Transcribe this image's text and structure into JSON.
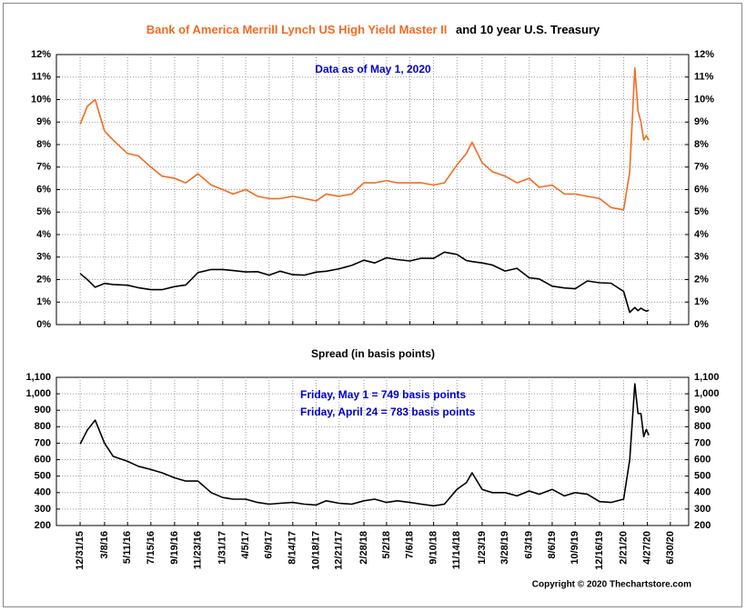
{
  "chart_data": [
    {
      "type": "line",
      "title_parts": [
        {
          "text": "Bank of America Merrill Lynch US High Yield Master II",
          "color": "#f26b21"
        },
        {
          "text": "and 10 year U.S. Treasury",
          "color": "#000000"
        }
      ],
      "annotation": "Data as of May 1, 2020",
      "x": [
        "12/31/15",
        "1/20/16",
        "2/11/16",
        "3/8/16",
        "4/1/16",
        "5/11/16",
        "6/10/16",
        "7/15/16",
        "8/15/16",
        "9/19/16",
        "10/20/16",
        "11/23/16",
        "12/30/16",
        "1/31/17",
        "3/1/17",
        "4/5/17",
        "5/8/17",
        "6/9/17",
        "7/10/17",
        "8/14/17",
        "9/15/17",
        "10/18/17",
        "11/15/17",
        "12/21/17",
        "1/25/18",
        "2/28/18",
        "3/30/18",
        "5/2/18",
        "6/1/18",
        "7/6/18",
        "8/7/18",
        "9/10/18",
        "10/10/18",
        "11/14/18",
        "12/10/18",
        "12/26/18",
        "1/23/19",
        "2/20/19",
        "3/28/19",
        "4/30/19",
        "6/3/19",
        "7/1/19",
        "8/6/19",
        "9/9/19",
        "10/9/19",
        "11/12/19",
        "12/16/19",
        "1/17/20",
        "2/21/20",
        "3/9/20",
        "3/23/20",
        "4/1/20",
        "4/9/20",
        "4/17/20",
        "4/24/20",
        "5/1/20"
      ],
      "xlim": [
        "10/26/15",
        "8/20/20"
      ],
      "ylim": [
        0,
        12
      ],
      "yticks": [
        {
          "value": 0,
          "label": "0%"
        },
        {
          "value": 1,
          "label": "1%"
        },
        {
          "value": 2,
          "label": "2%"
        },
        {
          "value": 3,
          "label": "3%"
        },
        {
          "value": 4,
          "label": "4%"
        },
        {
          "value": 5,
          "label": "5%"
        },
        {
          "value": 6,
          "label": "6%"
        },
        {
          "value": 7,
          "label": "7%"
        },
        {
          "value": 8,
          "label": "8%"
        },
        {
          "value": 9,
          "label": "9%"
        },
        {
          "value": 10,
          "label": "10%"
        },
        {
          "value": 11,
          "label": "11%"
        },
        {
          "value": 12,
          "label": "12%"
        }
      ],
      "grid": true,
      "annotation_color": "#0000cc",
      "series": [
        {
          "color": "#f26b21",
          "values": [
            8.9,
            9.7,
            10.0,
            8.6,
            8.2,
            7.6,
            7.5,
            7.0,
            6.6,
            6.5,
            6.3,
            6.7,
            6.2,
            6.0,
            5.8,
            6.0,
            5.7,
            5.6,
            5.6,
            5.7,
            5.6,
            5.5,
            5.8,
            5.7,
            5.8,
            6.3,
            6.3,
            6.4,
            6.3,
            6.3,
            6.3,
            6.2,
            6.3,
            7.1,
            7.6,
            8.1,
            7.2,
            6.8,
            6.6,
            6.3,
            6.5,
            6.1,
            6.2,
            5.8,
            5.8,
            5.7,
            5.6,
            5.2,
            5.1,
            6.8,
            11.4,
            9.5,
            9.0,
            8.2,
            8.4,
            8.2
          ]
        },
        {
          "color": "#000000",
          "values": [
            2.27,
            2.0,
            1.66,
            1.83,
            1.78,
            1.75,
            1.64,
            1.55,
            1.55,
            1.69,
            1.76,
            2.31,
            2.45,
            2.45,
            2.4,
            2.34,
            2.35,
            2.2,
            2.37,
            2.22,
            2.2,
            2.33,
            2.37,
            2.48,
            2.63,
            2.86,
            2.74,
            2.97,
            2.89,
            2.83,
            2.95,
            2.94,
            3.22,
            3.12,
            2.85,
            2.8,
            2.74,
            2.65,
            2.38,
            2.5,
            2.08,
            2.03,
            1.71,
            1.63,
            1.59,
            1.94,
            1.86,
            1.84,
            1.47,
            0.54,
            0.76,
            0.62,
            0.73,
            0.65,
            0.6,
            0.64
          ]
        }
      ]
    },
    {
      "type": "line",
      "title": "Spread (in basis points)",
      "annotations": [
        "Friday, May 1 = 749 basis points",
        "Friday, April 24 = 783 basis points"
      ],
      "annotation_color": "#0000cc",
      "x": [
        "12/31/15",
        "1/20/16",
        "2/11/16",
        "3/8/16",
        "4/1/16",
        "5/11/16",
        "6/10/16",
        "7/15/16",
        "8/15/16",
        "9/19/16",
        "10/20/16",
        "11/23/16",
        "12/30/16",
        "1/31/17",
        "3/1/17",
        "4/5/17",
        "5/8/17",
        "6/9/17",
        "7/10/17",
        "8/14/17",
        "9/15/17",
        "10/18/17",
        "11/15/17",
        "12/21/17",
        "1/25/18",
        "2/28/18",
        "3/30/18",
        "5/2/18",
        "6/1/18",
        "7/6/18",
        "8/7/18",
        "9/10/18",
        "10/10/18",
        "11/14/18",
        "12/10/18",
        "12/26/18",
        "1/23/19",
        "2/20/19",
        "3/28/19",
        "4/30/19",
        "6/3/19",
        "7/1/19",
        "8/6/19",
        "9/9/19",
        "10/9/19",
        "11/12/19",
        "12/16/19",
        "1/17/20",
        "2/21/20",
        "3/9/20",
        "3/23/20",
        "4/1/20",
        "4/9/20",
        "4/17/20",
        "4/24/20",
        "5/1/20"
      ],
      "xlim": [
        "10/26/15",
        "8/20/20"
      ],
      "xticks": [
        "12/31/15",
        "3/8/16",
        "5/11/16",
        "7/15/16",
        "9/19/16",
        "11/23/16",
        "1/31/17",
        "4/5/17",
        "6/9/17",
        "8/14/17",
        "10/18/17",
        "12/21/17",
        "2/28/18",
        "5/2/18",
        "7/6/18",
        "9/10/18",
        "11/14/18",
        "1/23/19",
        "3/28/19",
        "6/3/19",
        "8/6/19",
        "10/9/19",
        "12/16/19",
        "2/21/20",
        "4/27/20",
        "6/30/20"
      ],
      "ylim": [
        200,
        1100
      ],
      "yticks": [
        200,
        300,
        400,
        500,
        600,
        700,
        800,
        900,
        {
          "value": 1000,
          "label": "1,000"
        },
        {
          "value": 1100,
          "label": "1,100"
        }
      ],
      "grid": true,
      "series": [
        {
          "color": "#000000",
          "values": [
            695,
            780,
            840,
            700,
            620,
            590,
            560,
            540,
            520,
            490,
            470,
            470,
            400,
            370,
            360,
            360,
            340,
            330,
            335,
            340,
            330,
            325,
            350,
            335,
            330,
            350,
            360,
            340,
            350,
            340,
            330,
            320,
            330,
            420,
            460,
            520,
            420,
            400,
            400,
            380,
            410,
            390,
            420,
            380,
            400,
            390,
            345,
            340,
            360,
            600,
            1060,
            880,
            880,
            740,
            783,
            749
          ]
        }
      ]
    }
  ],
  "footer": "Copyright © 2020 Thechartstore.com"
}
